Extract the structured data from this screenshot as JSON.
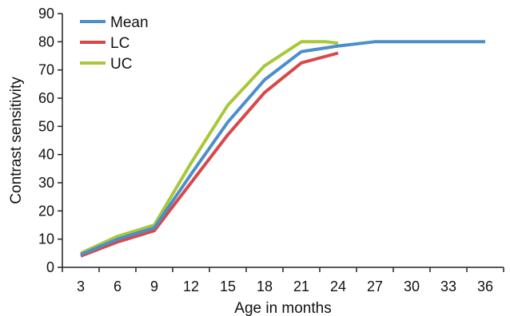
{
  "chart_data": {
    "type": "line",
    "xlabel": "Age in months",
    "ylabel": "Contrast sensitivity",
    "xlim": [
      1.5,
      37.5
    ],
    "ylim": [
      0,
      90
    ],
    "x_ticks": [
      "3",
      "6",
      "9",
      "12",
      "15",
      "18",
      "21",
      "24",
      "27",
      "30",
      "33",
      "36"
    ],
    "y_ticks": [
      "0",
      "10",
      "20",
      "30",
      "40",
      "50",
      "60",
      "70",
      "80",
      "90"
    ],
    "grid": false,
    "legend_position": "top-left",
    "series": [
      {
        "name": "Mean",
        "color": "#4a8fca",
        "points": [
          [
            3,
            4.5
          ],
          [
            6,
            10
          ],
          [
            9,
            14
          ],
          [
            12,
            33
          ],
          [
            15,
            51.5
          ],
          [
            18,
            66.5
          ],
          [
            21,
            76.5
          ],
          [
            24,
            78.5
          ],
          [
            27,
            80
          ],
          [
            30,
            80
          ],
          [
            33,
            80
          ],
          [
            36,
            80
          ]
        ]
      },
      {
        "name": "LC",
        "color": "#d94849",
        "points": [
          [
            3,
            4
          ],
          [
            6,
            9
          ],
          [
            9,
            13
          ],
          [
            12,
            30
          ],
          [
            15,
            47
          ],
          [
            18,
            62
          ],
          [
            21,
            72.5
          ],
          [
            24,
            76
          ]
        ]
      },
      {
        "name": "UC",
        "color": "#a8c839",
        "points": [
          [
            3,
            5
          ],
          [
            6,
            11
          ],
          [
            9,
            15
          ],
          [
            12,
            37
          ],
          [
            15,
            57.5
          ],
          [
            18,
            71.5
          ],
          [
            21,
            80
          ],
          [
            23,
            80
          ],
          [
            24,
            79.5
          ]
        ]
      }
    ]
  }
}
